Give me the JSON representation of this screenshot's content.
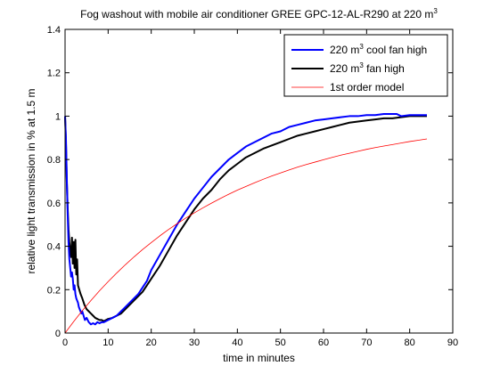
{
  "chart_data": {
    "type": "line",
    "title": "Fog washout with mobile air conditioner GREE GPC-12-AL-R290 at 220 m",
    "title_superscript": "3",
    "xlabel": "time in minutes",
    "ylabel": "relative light transmission in % at 1.5 m",
    "xlim": [
      0,
      90
    ],
    "ylim": [
      0,
      1.4
    ],
    "xticks": [
      "0",
      "10",
      "20",
      "30",
      "40",
      "50",
      "60",
      "70",
      "80",
      "90"
    ],
    "yticks": [
      "0",
      "0.2",
      "0.4",
      "0.6",
      "0.8",
      "1",
      "1.2",
      "1.4"
    ],
    "grid": false,
    "legend_position": "top-right",
    "series": [
      {
        "name": "220 m",
        "name_superscript": "3",
        "name_suffix": " cool fan high",
        "color": "#0000ff",
        "line_width": 2,
        "x": [
          0,
          0.2,
          0.4,
          0.6,
          0.8,
          1,
          1.2,
          1.4,
          1.6,
          1.8,
          2,
          2.2,
          2.4,
          2.6,
          2.8,
          3,
          3.2,
          3.4,
          3.6,
          3.8,
          4,
          4.3,
          4.6,
          5,
          5.5,
          6,
          6.5,
          7,
          7.5,
          8,
          8.5,
          9,
          9.5,
          10,
          11,
          12,
          13,
          14,
          15,
          16,
          17,
          18,
          19,
          20,
          22,
          24,
          26,
          28,
          30,
          32,
          34,
          36,
          38,
          40,
          42,
          44,
          46,
          48,
          50,
          52,
          54,
          56,
          58,
          60,
          62,
          64,
          66,
          68,
          70,
          72,
          74,
          76,
          77,
          78,
          80,
          82,
          84
        ],
        "y": [
          1.0,
          0.9,
          0.72,
          0.55,
          0.42,
          0.34,
          0.3,
          0.26,
          0.28,
          0.25,
          0.2,
          0.22,
          0.18,
          0.16,
          0.15,
          0.14,
          0.12,
          0.11,
          0.1,
          0.09,
          0.1,
          0.08,
          0.06,
          0.07,
          0.05,
          0.04,
          0.045,
          0.04,
          0.05,
          0.045,
          0.05,
          0.05,
          0.055,
          0.06,
          0.07,
          0.08,
          0.1,
          0.12,
          0.14,
          0.16,
          0.18,
          0.21,
          0.24,
          0.29,
          0.36,
          0.43,
          0.5,
          0.56,
          0.62,
          0.67,
          0.72,
          0.76,
          0.8,
          0.83,
          0.86,
          0.88,
          0.9,
          0.92,
          0.93,
          0.95,
          0.96,
          0.97,
          0.98,
          0.985,
          0.99,
          0.995,
          1.0,
          1.0,
          1.005,
          1.005,
          1.01,
          1.01,
          1.01,
          1.0,
          1.005,
          1.005,
          1.005
        ]
      },
      {
        "name": "220 m",
        "name_superscript": "3",
        "name_suffix": " fan high",
        "color": "#000000",
        "line_width": 2,
        "x": [
          0,
          0.2,
          0.4,
          0.6,
          0.8,
          1,
          1.2,
          1.4,
          1.6,
          1.8,
          2,
          2.2,
          2.4,
          2.6,
          2.8,
          3,
          3.3,
          3.6,
          4,
          4.5,
          5,
          5.5,
          6,
          6.5,
          7,
          7.5,
          8,
          8.5,
          9,
          9.5,
          10,
          11,
          12,
          13,
          14,
          15,
          16,
          17,
          18,
          19,
          20,
          22,
          24,
          26,
          28,
          30,
          32,
          34,
          36,
          38,
          40,
          42,
          44,
          46,
          48,
          50,
          52,
          54,
          56,
          58,
          60,
          62,
          64,
          66,
          68,
          70,
          72,
          74,
          76,
          78,
          80,
          82,
          84
        ],
        "y": [
          1.0,
          0.88,
          0.7,
          0.58,
          0.48,
          0.42,
          0.38,
          0.35,
          0.44,
          0.32,
          0.42,
          0.3,
          0.43,
          0.27,
          0.34,
          0.22,
          0.2,
          0.18,
          0.16,
          0.13,
          0.11,
          0.1,
          0.09,
          0.08,
          0.07,
          0.065,
          0.06,
          0.06,
          0.055,
          0.06,
          0.065,
          0.07,
          0.08,
          0.09,
          0.11,
          0.13,
          0.15,
          0.17,
          0.19,
          0.22,
          0.25,
          0.31,
          0.38,
          0.45,
          0.51,
          0.57,
          0.62,
          0.66,
          0.71,
          0.75,
          0.78,
          0.81,
          0.83,
          0.85,
          0.865,
          0.88,
          0.895,
          0.91,
          0.92,
          0.93,
          0.94,
          0.95,
          0.96,
          0.97,
          0.975,
          0.98,
          0.985,
          0.99,
          0.99,
          0.995,
          1.0,
          1.0,
          1.0
        ]
      },
      {
        "name": "1st order model",
        "color": "#ff0000",
        "line_width": 0.8,
        "x": [
          0,
          2,
          4,
          6,
          8,
          10,
          12,
          14,
          16,
          18,
          20,
          22,
          24,
          26,
          28,
          30,
          32,
          34,
          36,
          38,
          40,
          42,
          44,
          46,
          48,
          50,
          52,
          54,
          56,
          58,
          60,
          62,
          64,
          66,
          68,
          70,
          72,
          74,
          76,
          78,
          80,
          82,
          84
        ],
        "y": [
          0.0,
          0.053,
          0.103,
          0.15,
          0.195,
          0.237,
          0.277,
          0.315,
          0.351,
          0.385,
          0.417,
          0.448,
          0.477,
          0.504,
          0.53,
          0.554,
          0.577,
          0.599,
          0.62,
          0.64,
          0.659,
          0.676,
          0.693,
          0.709,
          0.724,
          0.738,
          0.752,
          0.765,
          0.777,
          0.788,
          0.799,
          0.81,
          0.82,
          0.829,
          0.838,
          0.847,
          0.855,
          0.862,
          0.869,
          0.876,
          0.883,
          0.889,
          0.895
        ]
      }
    ]
  }
}
